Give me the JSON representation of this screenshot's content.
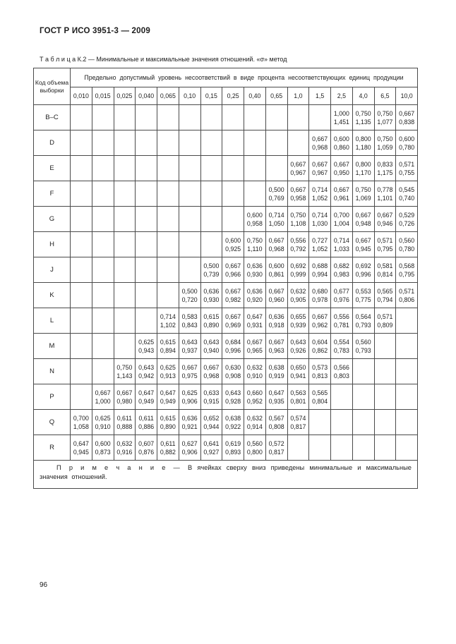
{
  "page": {
    "header": "ГОСТ Р ИСО 3951-3 — 2009",
    "page_number": "96"
  },
  "table": {
    "caption": "Т а б л и ц а  К.2 — Минимальные и максимальные значения отношений. «σ» метод",
    "corner_header": "Код объема выборки",
    "group_header": "Предельно допустимый уровень несоответствий в виде процента несоответствующих единиц продукции",
    "columns": [
      "0,010",
      "0,015",
      "0,025",
      "0,040",
      "0,065",
      "0,10",
      "0,15",
      "0,25",
      "0,40",
      "0,65",
      "1,0",
      "1,5",
      "2,5",
      "4,0",
      "6,5",
      "10,0"
    ],
    "rows": [
      {
        "code": "B–C",
        "start": 12,
        "min": [
          "1,000",
          "0,750",
          "0,750",
          "0,667"
        ],
        "max": [
          "1,451",
          "1,135",
          "1,077",
          "0,838"
        ]
      },
      {
        "code": "D",
        "start": 11,
        "min": [
          "0,667",
          "0,600",
          "0,800",
          "0,750",
          "0,600"
        ],
        "max": [
          "0,968",
          "0,860",
          "1,180",
          "1,059",
          "0,780"
        ]
      },
      {
        "code": "E",
        "start": 10,
        "min": [
          "0,667",
          "0,667",
          "0,667",
          "0,800",
          "0,833",
          "0,571"
        ],
        "max": [
          "0,967",
          "0,967",
          "0,950",
          "1,170",
          "1,175",
          "0,755"
        ]
      },
      {
        "code": "F",
        "start": 9,
        "min": [
          "0,500",
          "0,667",
          "0,714",
          "0,667",
          "0,750",
          "0,778",
          "0,545"
        ],
        "max": [
          "0,769",
          "0,958",
          "1,052",
          "0,961",
          "1,069",
          "1,101",
          "0,740"
        ]
      },
      {
        "code": "G",
        "start": 8,
        "min": [
          "0,600",
          "0,714",
          "0,750",
          "0,714",
          "0,700",
          "0,667",
          "0,667",
          "0,529"
        ],
        "max": [
          "0,958",
          "1,050",
          "1,108",
          "1,030",
          "1,004",
          "0,948",
          "0,946",
          "0,726"
        ]
      },
      {
        "code": "H",
        "start": 7,
        "min": [
          "0,600",
          "0,750",
          "0,667",
          "0,556",
          "0,727",
          "0,714",
          "0,667",
          "0,571",
          "0,560"
        ],
        "max": [
          "0,925",
          "1,110",
          "0,968",
          "0,792",
          "1,052",
          "1,033",
          "0,945",
          "0,795",
          "0,780"
        ]
      },
      {
        "code": "J",
        "start": 6,
        "min": [
          "0,500",
          "0,667",
          "0,636",
          "0,600",
          "0,692",
          "0,688",
          "0,682",
          "0,692",
          "0,581",
          "0,568"
        ],
        "max": [
          "0,739",
          "0,966",
          "0,930",
          "0,861",
          "0,999",
          "0,994",
          "0,983",
          "0,996",
          "0,814",
          "0,795"
        ]
      },
      {
        "code": "K",
        "start": 5,
        "min": [
          "0,500",
          "0,636",
          "0,667",
          "0,636",
          "0,667",
          "0,632",
          "0,680",
          "0,677",
          "0,553",
          "0,565",
          "0,571"
        ],
        "max": [
          "0,720",
          "0,930",
          "0,982",
          "0,920",
          "0,960",
          "0,905",
          "0,978",
          "0,976",
          "0,775",
          "0,794",
          "0,806"
        ]
      },
      {
        "code": "L",
        "start": 4,
        "min": [
          "0,714",
          "0,583",
          "0,615",
          "0,667",
          "0,647",
          "0,636",
          "0,655",
          "0,667",
          "0,556",
          "0,564",
          "0,571"
        ],
        "max": [
          "1,102",
          "0,843",
          "0,890",
          "0,969",
          "0,931",
          "0,918",
          "0,939",
          "0,962",
          "0,781",
          "0,793",
          "0,809"
        ]
      },
      {
        "code": "M",
        "start": 3,
        "min": [
          "0,625",
          "0,615",
          "0,643",
          "0,643",
          "0,684",
          "0,667",
          "0,667",
          "0,643",
          "0,604",
          "0,554",
          "0,560"
        ],
        "max": [
          "0,943",
          "0,894",
          "0,937",
          "0,940",
          "0,996",
          "0,965",
          "0,963",
          "0,926",
          "0,862",
          "0,783",
          "0,793"
        ]
      },
      {
        "code": "N",
        "start": 2,
        "min": [
          "0,750",
          "0,643",
          "0,625",
          "0,667",
          "0,667",
          "0,630",
          "0,632",
          "0,638",
          "0,650",
          "0,573",
          "0,566"
        ],
        "max": [
          "1,143",
          "0,942",
          "0,913",
          "0,975",
          "0,968",
          "0,908",
          "0,910",
          "0,919",
          "0,941",
          "0,813",
          "0,803"
        ]
      },
      {
        "code": "P",
        "start": 1,
        "min": [
          "0,667",
          "0,667",
          "0,647",
          "0,647",
          "0,625",
          "0,633",
          "0,643",
          "0,660",
          "0,647",
          "0,563",
          "0,565"
        ],
        "max": [
          "1,000",
          "0,980",
          "0,949",
          "0,949",
          "0,906",
          "0,915",
          "0,928",
          "0,952",
          "0,935",
          "0,801",
          "0,804"
        ]
      },
      {
        "code": "Q",
        "start": 0,
        "min": [
          "0,700",
          "0,625",
          "0,611",
          "0,611",
          "0,615",
          "0,636",
          "0,652",
          "0,638",
          "0,632",
          "0,567",
          "0,574"
        ],
        "max": [
          "1,058",
          "0,910",
          "0,888",
          "0,886",
          "0,890",
          "0,921",
          "0,944",
          "0,922",
          "0,914",
          "0,808",
          "0,817"
        ]
      },
      {
        "code": "R",
        "start": 0,
        "min": [
          "0,647",
          "0,600",
          "0,632",
          "0,607",
          "0,611",
          "0,627",
          "0,641",
          "0,619",
          "0,560",
          "0,572"
        ],
        "max": [
          "0,945",
          "0,873",
          "0,916",
          "0,876",
          "0,882",
          "0,906",
          "0,927",
          "0,893",
          "0,800",
          "0,817"
        ]
      }
    ],
    "note_label": "П р и м е ч а н и е — ",
    "note_text": "В  ячейках  сверху  вниз  приведены  минимальные  и  максимальные  значения отношений."
  }
}
